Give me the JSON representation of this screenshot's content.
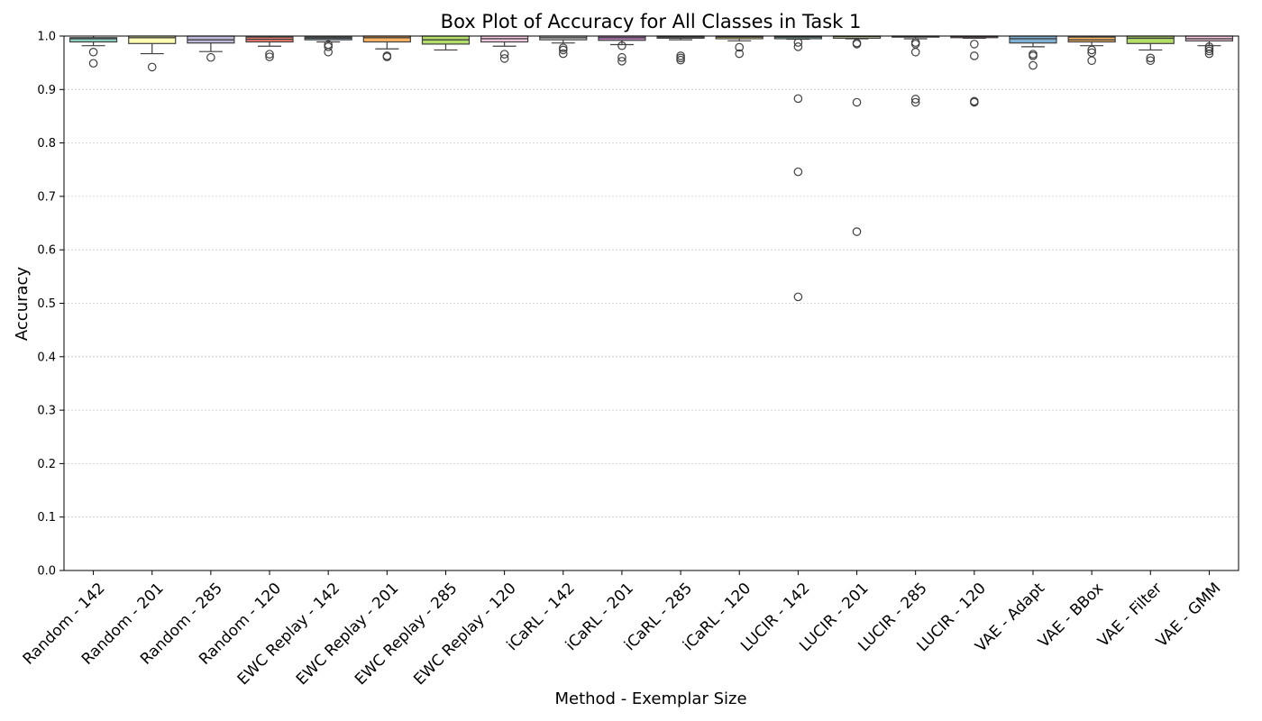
{
  "chart_data": {
    "type": "box",
    "title": "Box Plot of Accuracy for All Classes in Task 1",
    "xlabel": "Method - Exemplar Size",
    "ylabel": "Accuracy",
    "ylim": [
      0.0,
      1.0
    ],
    "yticks": [
      0.0,
      0.1,
      0.2,
      0.3,
      0.4,
      0.5,
      0.6,
      0.7,
      0.8,
      0.9,
      1.0
    ],
    "ytick_labels": [
      "0.0",
      "0.1",
      "0.2",
      "0.3",
      "0.4",
      "0.5",
      "0.6",
      "0.7",
      "0.8",
      "0.9",
      "1.0"
    ],
    "grid": "y-dotted",
    "categories": [
      "Random - 142",
      "Random - 201",
      "Random - 285",
      "Random - 120",
      "EWC Replay - 142",
      "EWC Replay - 201",
      "EWC Replay - 285",
      "EWC Replay - 120",
      "iCaRL - 142",
      "iCaRL - 201",
      "iCaRL - 285",
      "iCaRL - 120",
      "LUCIR - 142",
      "LUCIR - 201",
      "LUCIR - 285",
      "LUCIR - 120",
      "VAE - Adapt",
      "VAE - BBox",
      "VAE - Filter",
      "VAE - GMM"
    ],
    "colors": [
      "#8dd3c7",
      "#ffffb3",
      "#bebada",
      "#fb8072",
      "#80b1d3",
      "#fdb462",
      "#b3de69",
      "#fccde5",
      "#d9d9d9",
      "#bc80bd",
      "#ccebc5",
      "#ffed6f",
      "#8dd3c7",
      "#ffffb3",
      "#bebada",
      "#fb8072",
      "#80b1d3",
      "#fdb462",
      "#b3de69",
      "#fccde5"
    ],
    "boxes": [
      {
        "whislo": 0.982,
        "q1": 0.989,
        "med": 0.995,
        "q3": 0.997,
        "whishi": 1.0,
        "fliers": [
          0.97,
          0.949
        ]
      },
      {
        "whislo": 0.967,
        "q1": 0.986,
        "med": 0.997,
        "q3": 1.0,
        "whishi": 1.0,
        "fliers": [
          0.942
        ]
      },
      {
        "whislo": 0.971,
        "q1": 0.987,
        "med": 0.993,
        "q3": 1.0,
        "whishi": 1.0,
        "fliers": [
          0.96
        ]
      },
      {
        "whislo": 0.981,
        "q1": 0.989,
        "med": 0.994,
        "q3": 0.998,
        "whishi": 1.0,
        "fliers": [
          0.966,
          0.961
        ]
      },
      {
        "whislo": 0.989,
        "q1": 0.993,
        "med": 0.996,
        "q3": 0.998,
        "whishi": 1.0,
        "fliers": [
          0.984,
          0.98,
          0.97
        ]
      },
      {
        "whislo": 0.976,
        "q1": 0.989,
        "med": 0.997,
        "q3": 1.0,
        "whishi": 1.0,
        "fliers": [
          0.963,
          0.961
        ]
      },
      {
        "whislo": 0.974,
        "q1": 0.985,
        "med": 0.993,
        "q3": 1.0,
        "whishi": 1.0,
        "fliers": []
      },
      {
        "whislo": 0.981,
        "q1": 0.989,
        "med": 0.995,
        "q3": 1.0,
        "whishi": 1.0,
        "fliers": [
          0.966,
          0.958
        ]
      },
      {
        "whislo": 0.987,
        "q1": 0.993,
        "med": 0.997,
        "q3": 1.0,
        "whishi": 1.0,
        "fliers": [
          0.978,
          0.974,
          0.967
        ]
      },
      {
        "whislo": 0.984,
        "q1": 0.992,
        "med": 0.997,
        "q3": 1.0,
        "whishi": 1.0,
        "fliers": [
          0.982,
          0.96,
          0.953
        ]
      },
      {
        "whislo": 0.993,
        "q1": 0.996,
        "med": 0.998,
        "q3": 1.0,
        "whishi": 1.0,
        "fliers": [
          0.963,
          0.959,
          0.955
        ]
      },
      {
        "whislo": 0.991,
        "q1": 0.995,
        "med": 0.998,
        "q3": 1.0,
        "whishi": 1.0,
        "fliers": [
          0.979,
          0.967
        ]
      },
      {
        "whislo": 0.994,
        "q1": 0.995,
        "med": 0.998,
        "q3": 1.0,
        "whishi": 1.0,
        "fliers": [
          0.988,
          0.98,
          0.883,
          0.746,
          0.512
        ]
      },
      {
        "whislo": 0.995,
        "q1": 0.996,
        "med": 0.999,
        "q3": 1.0,
        "whishi": 1.0,
        "fliers": [
          0.987,
          0.985,
          0.876,
          0.634
        ]
      },
      {
        "whislo": 0.995,
        "q1": 0.998,
        "med": 0.999,
        "q3": 1.0,
        "whishi": 1.0,
        "fliers": [
          0.988,
          0.985,
          0.97,
          0.882,
          0.876
        ]
      },
      {
        "whislo": 0.996,
        "q1": 0.997,
        "med": 0.999,
        "q3": 1.0,
        "whishi": 1.0,
        "fliers": [
          0.985,
          0.963,
          0.878,
          0.876
        ]
      },
      {
        "whislo": 0.98,
        "q1": 0.987,
        "med": 0.995,
        "q3": 1.0,
        "whishi": 1.0,
        "fliers": [
          0.966,
          0.963,
          0.945
        ]
      },
      {
        "whislo": 0.982,
        "q1": 0.989,
        "med": 0.993,
        "q3": 0.998,
        "whishi": 1.0,
        "fliers": [
          0.974,
          0.969,
          0.954
        ]
      },
      {
        "whislo": 0.974,
        "q1": 0.986,
        "med": 0.996,
        "q3": 1.0,
        "whishi": 1.0,
        "fliers": [
          0.959,
          0.954
        ]
      },
      {
        "whislo": 0.982,
        "q1": 0.991,
        "med": 0.995,
        "q3": 1.0,
        "whishi": 1.0,
        "fliers": [
          0.98,
          0.976,
          0.972,
          0.967
        ]
      }
    ]
  }
}
